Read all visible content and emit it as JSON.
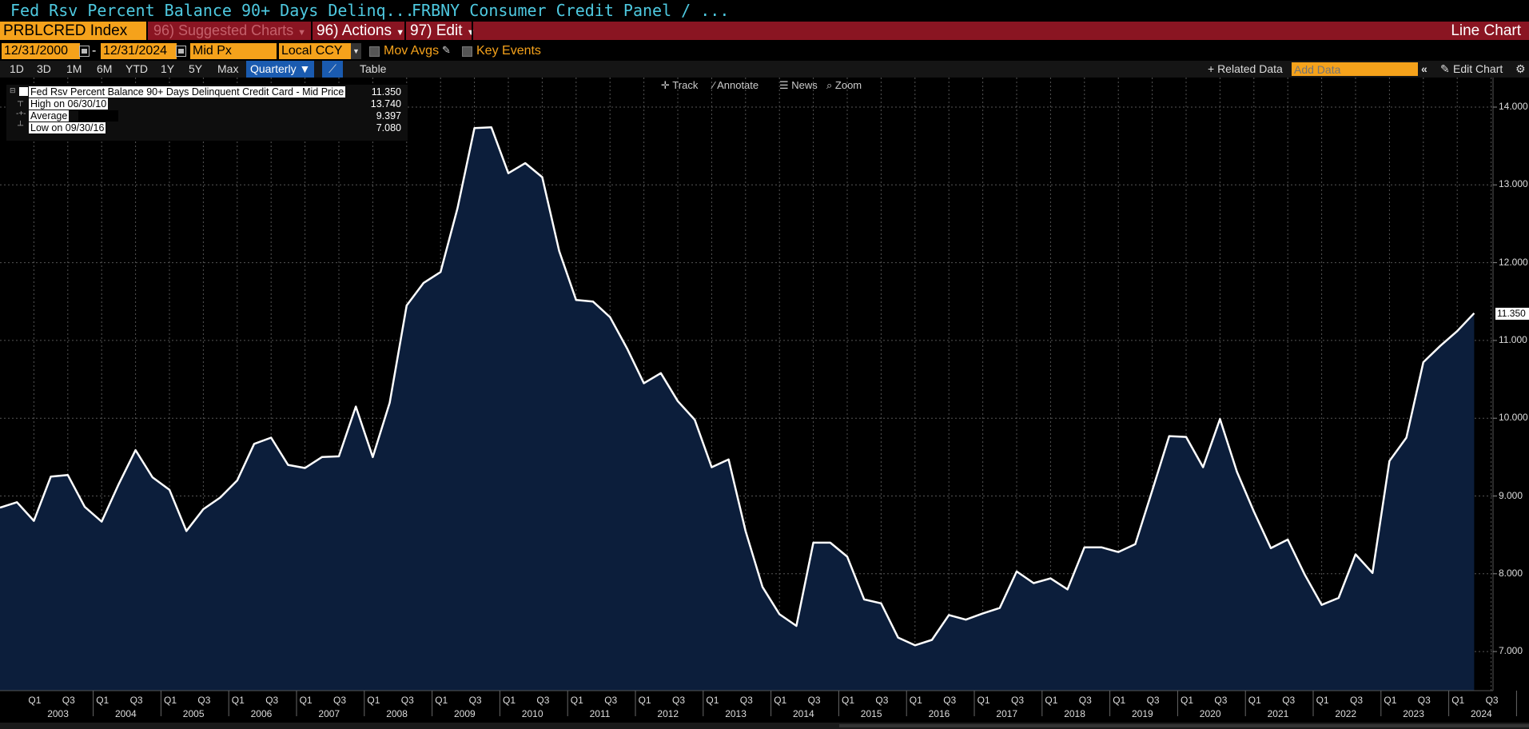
{
  "window": {
    "title_left": "Fed Rsv Percent Balance 90+ Days Delinq...",
    "title_right": "FRBNY Consumer Credit Panel / ..."
  },
  "toolbar": {
    "ticker": "PRBLCRED Index",
    "suggested": "96) Suggested Charts",
    "actions": "96) Actions",
    "edit": "97) Edit",
    "chart_type": "Line Chart"
  },
  "controls": {
    "start_date": "12/31/2000",
    "dash": "-",
    "end_date": "12/31/2024",
    "price_field": "Mid Px",
    "currency": "Local CCY",
    "mov_avgs": "Mov Avgs",
    "key_events": "Key Events"
  },
  "ranges": [
    "1D",
    "3D",
    "1M",
    "6M",
    "YTD",
    "1Y",
    "5Y",
    "Max"
  ],
  "period": "Quarterly ▼",
  "table_label": "Table",
  "right_controls": {
    "related": "+ Related Data",
    "add_data_placeholder": "Add Data",
    "edit_chart": "Edit Chart"
  },
  "tools": [
    "Track",
    "Annotate",
    "News",
    "Zoom"
  ],
  "legend": {
    "series": {
      "label": "Fed Rsv Percent Balance 90+ Days Delinquent Credit Card - Mid Price",
      "value": "11.350"
    },
    "high": {
      "label": "High on 06/30/10",
      "value": "13.740"
    },
    "avg": {
      "label": "Average",
      "value": "9.397"
    },
    "low": {
      "label": "Low on 09/30/16",
      "value": "7.080"
    }
  },
  "last_value_tag": "11.350",
  "colors": {
    "line": "#ffffff",
    "fill": "#0c1e3b",
    "accent": "#f5a21b",
    "toolbar": "#8a1522",
    "title": "#4ec9e0"
  },
  "chart_data": {
    "type": "area",
    "ylim": [
      6.4,
      14.3
    ],
    "yticks": [
      "14.000",
      "13.000",
      "12.000",
      "11.000",
      "10.000",
      "9.000",
      "8.000",
      "7.000"
    ],
    "x_start": "2002 Q3",
    "frequency": "quarterly",
    "quarter_labels": [
      "Q1",
      "Q3"
    ],
    "years": [
      "2003",
      "2004",
      "2005",
      "2006",
      "2007",
      "2008",
      "2009",
      "2010",
      "2011",
      "2012",
      "2013",
      "2014",
      "2015",
      "2016",
      "2017",
      "2018",
      "2019",
      "2020",
      "2021",
      "2022",
      "2023",
      "2024"
    ],
    "values": [
      8.85,
      8.92,
      8.68,
      9.25,
      9.27,
      8.86,
      8.67,
      9.15,
      9.59,
      9.24,
      9.08,
      8.55,
      8.83,
      8.98,
      9.2,
      9.67,
      9.75,
      9.4,
      9.36,
      9.5,
      9.51,
      10.15,
      9.5,
      10.2,
      11.45,
      11.74,
      11.88,
      12.7,
      13.73,
      13.74,
      13.15,
      13.28,
      13.1,
      12.15,
      11.52,
      11.5,
      11.3,
      10.9,
      10.45,
      10.58,
      10.22,
      9.98,
      9.37,
      9.47,
      8.55,
      7.83,
      7.48,
      7.33,
      8.4,
      8.4,
      8.22,
      7.67,
      7.62,
      7.18,
      7.08,
      7.15,
      7.47,
      7.41,
      7.49,
      7.56,
      8.03,
      7.88,
      7.94,
      7.8,
      8.34,
      8.34,
      8.28,
      8.38,
      9.07,
      9.77,
      9.76,
      9.37,
      9.99,
      9.31,
      8.8,
      8.33,
      8.44,
      7.99,
      7.6,
      7.69,
      8.25,
      8.01,
      9.45,
      9.75,
      10.72,
      10.93,
      11.12,
      11.35
    ]
  }
}
